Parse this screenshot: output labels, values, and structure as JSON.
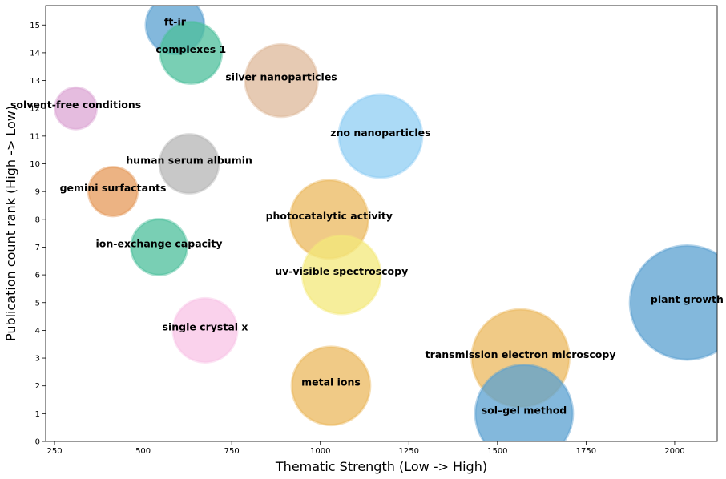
{
  "chart_data": {
    "type": "scatter",
    "title": "",
    "xlabel": "Thematic Strength (Low -> High)",
    "ylabel": "Publication count rank (High -> Low)",
    "xlim": [
      225,
      2120
    ],
    "ylim": [
      0,
      15.7
    ],
    "xticks": [
      250,
      500,
      750,
      1000,
      1250,
      1500,
      1750,
      2000
    ],
    "yticks": [
      0,
      1,
      2,
      3,
      4,
      5,
      6,
      7,
      8,
      9,
      10,
      11,
      12,
      13,
      14,
      15
    ],
    "grid": false,
    "legend": "none",
    "points": [
      {
        "label": "ft-ir",
        "x": 590,
        "y": 15,
        "size": 0.7,
        "color": "#5aa0d0"
      },
      {
        "label": "complexes 1",
        "x": 635,
        "y": 14,
        "size": 0.74,
        "color": "#4cbf9b"
      },
      {
        "label": "silver nanoparticles",
        "x": 890,
        "y": 13,
        "size": 0.87,
        "color": "#deb899"
      },
      {
        "label": "solvent-free conditions",
        "x": 310,
        "y": 12,
        "size": 0.5,
        "color": "#dca6d4"
      },
      {
        "label": "zno nanoparticles",
        "x": 1170,
        "y": 11,
        "size": 1.0,
        "color": "#8fcdf3"
      },
      {
        "label": "human serum albumin",
        "x": 630,
        "y": 10,
        "size": 0.71,
        "color": "#b5b5b5"
      },
      {
        "label": "gemini surfactants",
        "x": 415,
        "y": 9,
        "size": 0.59,
        "color": "#e59a5a"
      },
      {
        "label": "photocatalytic activity",
        "x": 1025,
        "y": 8,
        "size": 0.94,
        "color": "#ebb85e"
      },
      {
        "label": "ion-exchange capacity",
        "x": 545,
        "y": 7,
        "size": 0.67,
        "color": "#4cbf9b"
      },
      {
        "label": "uv-visible spectroscopy",
        "x": 1060,
        "y": 6,
        "size": 0.94,
        "color": "#f3e87a"
      },
      {
        "label": "plant growth",
        "x": 2035,
        "y": 5,
        "size": 1.37,
        "color": "#5aa0d0"
      },
      {
        "label": "single crystal x",
        "x": 675,
        "y": 4,
        "size": 0.77,
        "color": "#f8c3e6"
      },
      {
        "label": "transmission electron microscopy",
        "x": 1565,
        "y": 3,
        "size": 1.17,
        "color": "#ebb85e"
      },
      {
        "label": "metal ions",
        "x": 1030,
        "y": 2,
        "size": 0.94,
        "color": "#ebb85e"
      },
      {
        "label": "sol–gel method",
        "x": 1575,
        "y": 1,
        "size": 1.17,
        "color": "#5aa0d0"
      }
    ]
  }
}
